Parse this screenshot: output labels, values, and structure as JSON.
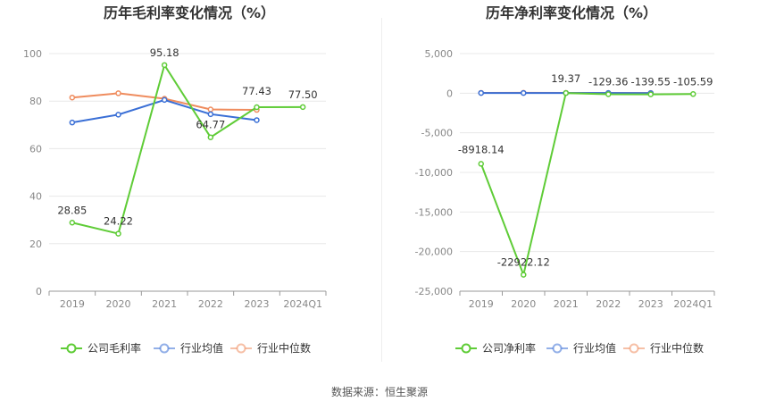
{
  "chart_data": [
    {
      "type": "line",
      "title": "历年毛利率变化情况（%）",
      "categories": [
        "2019",
        "2020",
        "2021",
        "2022",
        "2023",
        "2024Q1"
      ],
      "ylim": [
        0,
        100
      ],
      "yticks": [
        0,
        20,
        40,
        60,
        80,
        100
      ],
      "ytick_labels": [
        "0",
        "20",
        "40",
        "60",
        "80",
        "100"
      ],
      "grid": true,
      "legend_position": "bottom",
      "series": [
        {
          "name": "公司毛利率",
          "color": "#5fcc37",
          "values": [
            28.85,
            24.22,
            95.18,
            64.77,
            77.43,
            77.5
          ],
          "labels": [
            "28.85",
            "24.22",
            "95.18",
            "64.77",
            "77.43",
            "77.50"
          ]
        },
        {
          "name": "行业均值",
          "color": "#3a6fd6",
          "values": [
            71.0,
            74.3,
            80.5,
            74.5,
            72.0,
            null
          ]
        },
        {
          "name": "行业中位数",
          "color": "#ef8c5e",
          "values": [
            81.5,
            83.3,
            81.0,
            76.5,
            76.3,
            null
          ]
        }
      ]
    },
    {
      "type": "line",
      "title": "历年净利率变化情况（%）",
      "categories": [
        "2019",
        "2020",
        "2021",
        "2022",
        "2023",
        "2024Q1"
      ],
      "ylim": [
        -25000,
        5000
      ],
      "yticks": [
        5000,
        0,
        -5000,
        -10000,
        -15000,
        -20000,
        -25000
      ],
      "ytick_labels": [
        "5,000",
        "0",
        "-5,000",
        "-10,000",
        "-15,000",
        "-20,000",
        "-25,000"
      ],
      "grid": true,
      "legend_position": "bottom",
      "series": [
        {
          "name": "公司净利率",
          "color": "#5fcc37",
          "values": [
            -8918.14,
            -22922.12,
            19.37,
            -129.36,
            -139.55,
            -105.59
          ],
          "labels": [
            "-8918.14",
            "-22922.12",
            "19.37",
            "-129.36",
            "-139.55",
            "-105.59"
          ]
        },
        {
          "name": "行业均值",
          "color": "#3a6fd6",
          "values": [
            30,
            30,
            25,
            20,
            15,
            null
          ]
        },
        {
          "name": "行业中位数",
          "color": "#ef8c5e",
          "values": [
            40,
            45,
            35,
            25,
            20,
            null
          ]
        }
      ]
    }
  ],
  "footer": {
    "source": "数据来源：恒生聚源"
  }
}
